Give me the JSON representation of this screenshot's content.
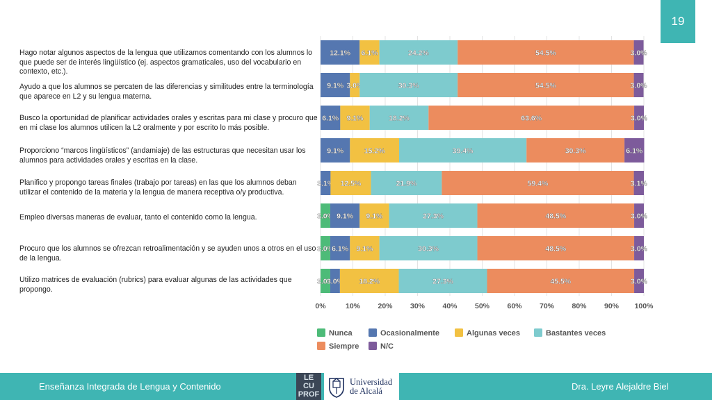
{
  "page_number": "19",
  "footer": {
    "left": "Enseñanza Integrada de Lengua y Contenido",
    "right": "Dra. Leyre Alejaldre Biel",
    "logo_lecu_lines": [
      "LE",
      "CU",
      "PROF"
    ],
    "university_line1": "Universidad",
    "university_line2": "de Alcalá"
  },
  "statements": [
    "Hago notar algunos aspectos de la lengua que utilizamos comentando con los alumnos lo que puede ser de interés lingüístico (ej. aspectos gramaticales, uso del vocabulario en contexto, etc.).",
    "Ayudo a que los alumnos se percaten de las diferencias y similitudes entre la terminología que aparece en L2 y su lengua materna.",
    "Busco la oportunidad de planificar actividades orales y escritas para mi clase y procuro que en mi clase los alumnos utilicen la L2 oralmente y por escrito lo más posible.",
    "Proporciono “marcos lingüísticos” (andamiaje) de las estructuras que necesitan usar los alumnos para actividades orales y escritas en la clase.",
    "Planifico y propongo tareas finales (trabajo por tareas) en las que los alumnos deban utilizar el contenido de la materia y la lengua de manera receptiva o/y productiva.",
    "Empleo diversas maneras de evaluar, tanto el contenido como la lengua.",
    "Procuro que los alumnos se ofrezcan retroalimentación y se ayuden unos a otros en el uso de la lengua.",
    "Utilizo matrices de evaluación (rubrics) para evaluar algunas de las actividades que propongo."
  ],
  "chart_data": {
    "type": "bar",
    "orientation": "horizontal",
    "stacked": true,
    "percent": true,
    "categories": [
      "1",
      "2",
      "3",
      "4",
      "5",
      "6",
      "7",
      "8"
    ],
    "series": [
      {
        "name": "Nunca",
        "color": "#4dbb78",
        "values": [
          0,
          0,
          0,
          0,
          0,
          3.0,
          3.0,
          3.0
        ],
        "labels": [
          "",
          "",
          "",
          "",
          "",
          "3.0%",
          "3.0%",
          "3.0%"
        ]
      },
      {
        "name": "Ocasionalmente",
        "color": "#5577b0",
        "values": [
          12.1,
          9.1,
          6.1,
          9.1,
          3.1,
          9.1,
          6.1,
          3.0
        ],
        "labels": [
          "12.1%",
          "9.1%",
          "6.1%",
          "9.1%",
          "3.1%",
          "9.1%",
          "6.1%",
          "3.0%"
        ]
      },
      {
        "name": "Algunas veces",
        "color": "#f2c142",
        "values": [
          6.1,
          3.0,
          9.1,
          15.2,
          12.5,
          9.1,
          9.1,
          18.2
        ],
        "labels": [
          "6.1%",
          "3.0%",
          "9.1%",
          "15.2%",
          "12.5%",
          "9.1%",
          "9.1%",
          "18.2%"
        ]
      },
      {
        "name": "Bastantes veces",
        "color": "#7ecbce",
        "values": [
          24.2,
          30.3,
          18.2,
          39.4,
          21.9,
          27.3,
          30.3,
          27.3
        ],
        "labels": [
          "24.2%",
          "30.3%",
          "18.2%",
          "39.4%",
          "21.9%",
          "27.3%",
          "30.3%",
          "27.3%"
        ]
      },
      {
        "name": "Siempre",
        "color": "#ec8c5e",
        "values": [
          54.5,
          54.5,
          63.6,
          30.3,
          59.4,
          48.5,
          48.5,
          45.5
        ],
        "labels": [
          "54.5%",
          "54.5%",
          "63.6%",
          "30.3%",
          "59.4%",
          "48.5%",
          "48.5%",
          "45.5%"
        ]
      },
      {
        "name": "N/C",
        "color": "#7d5b9b",
        "values": [
          3.0,
          3.0,
          3.0,
          6.1,
          3.1,
          3.0,
          3.0,
          3.0
        ],
        "labels": [
          "3.0%",
          "3.0%",
          "3.0%",
          "6.1%",
          "3.1%",
          "3.0%",
          "3.0%",
          "3.0%"
        ]
      }
    ],
    "xlim": [
      0,
      100
    ],
    "xticks": [
      "0%",
      "10%",
      "20%",
      "30%",
      "40%",
      "50%",
      "60%",
      "70%",
      "80%",
      "90%",
      "100%"
    ],
    "grid": true,
    "legend_position": "bottom",
    "title": "",
    "xlabel": "",
    "ylabel": ""
  }
}
